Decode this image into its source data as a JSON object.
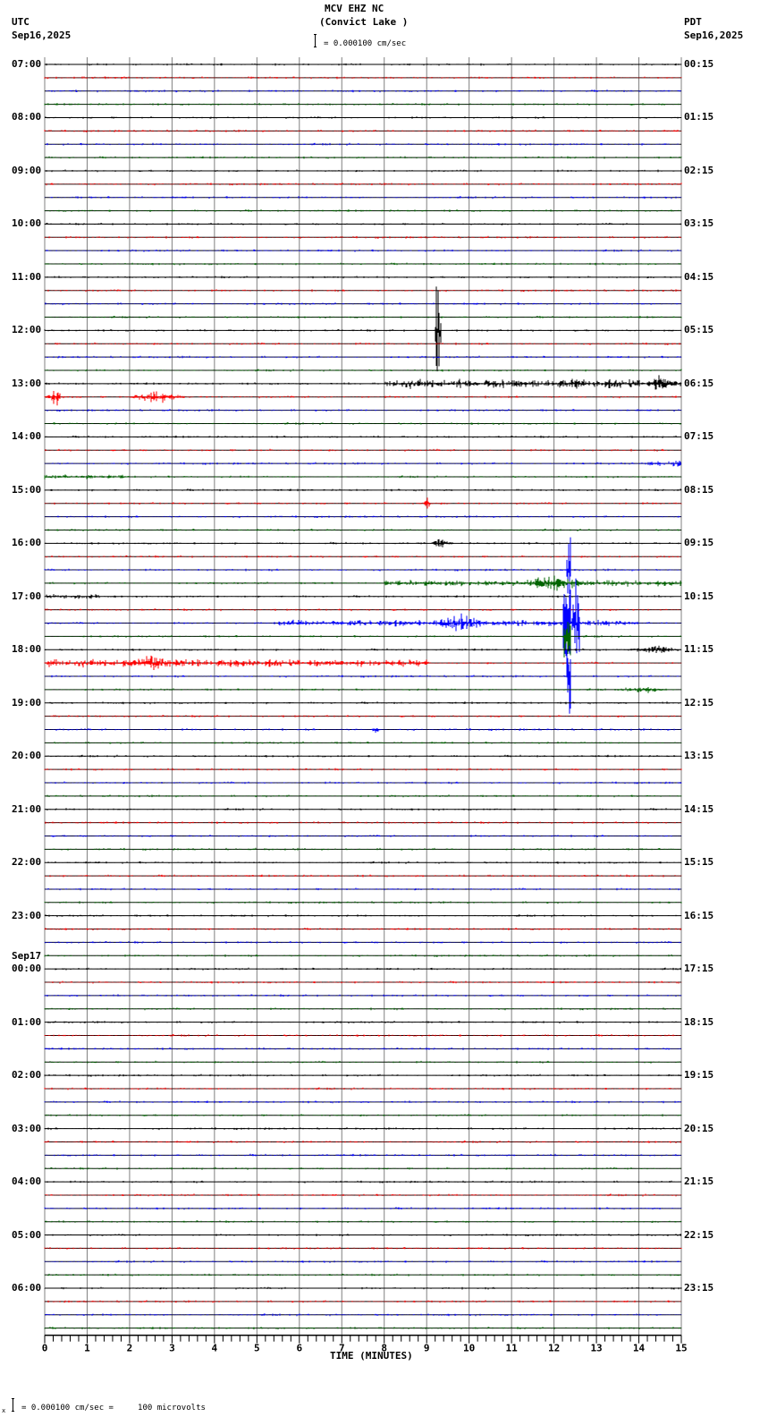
{
  "header": {
    "station": "MCV EHZ NC",
    "location": "(Convict Lake )",
    "left_tz": "UTC",
    "left_date": "Sep16,2025",
    "right_tz": "PDT",
    "right_date": "Sep16,2025",
    "scale_text": "= 0.000100 cm/sec"
  },
  "footer": {
    "scale_text": "= 0.000100 cm/sec =     100 microvolts",
    "prefix": "x"
  },
  "chart_data": {
    "type": "line",
    "title": "MCV EHZ NC (Convict Lake ) helicorder",
    "xlabel": "TIME (MINUTES)",
    "ylabel": "",
    "x_ticks": [
      "0",
      "1",
      "2",
      "3",
      "4",
      "5",
      "6",
      "7",
      "8",
      "9",
      "10",
      "11",
      "12",
      "13",
      "14",
      "15"
    ],
    "xlim": [
      0,
      15
    ],
    "grid": true,
    "trace_colors": [
      "#000000",
      "#ff0000",
      "#0000ff",
      "#006400"
    ],
    "rows_per_hour": 4,
    "left_labels": [
      "07:00",
      "08:00",
      "09:00",
      "10:00",
      "11:00",
      "12:00",
      "13:00",
      "14:00",
      "15:00",
      "16:00",
      "17:00",
      "18:00",
      "19:00",
      "20:00",
      "21:00",
      "22:00",
      "23:00",
      "00:00",
      "01:00",
      "02:00",
      "03:00",
      "04:00",
      "05:00",
      "06:00"
    ],
    "date_change_label": {
      "hour_index": 17,
      "text": "Sep17"
    },
    "right_labels": [
      "00:15",
      "01:15",
      "02:15",
      "03:15",
      "04:15",
      "05:15",
      "06:15",
      "07:15",
      "08:15",
      "09:15",
      "10:15",
      "11:15",
      "12:15",
      "13:15",
      "14:15",
      "15:15",
      "16:15",
      "17:15",
      "18:15",
      "19:15",
      "20:15",
      "21:15",
      "22:15",
      "23:15"
    ],
    "events": [
      {
        "row": 20,
        "start": 9.2,
        "end": 9.35,
        "amp": 60,
        "type": "spike"
      },
      {
        "row": 24,
        "start": 8.0,
        "end": 15.0,
        "amp": 6,
        "type": "noise"
      },
      {
        "row": 24,
        "start": 12.4,
        "end": 12.7,
        "amp": 8,
        "type": "burst"
      },
      {
        "row": 24,
        "start": 14.2,
        "end": 14.8,
        "amp": 14,
        "type": "burst"
      },
      {
        "row": 25,
        "start": 0.0,
        "end": 0.5,
        "amp": 12,
        "type": "burst"
      },
      {
        "row": 25,
        "start": 2.0,
        "end": 3.3,
        "amp": 7,
        "type": "burst"
      },
      {
        "row": 30,
        "start": 14.2,
        "end": 15.0,
        "amp": 4,
        "type": "noise"
      },
      {
        "row": 31,
        "start": 0.0,
        "end": 2.0,
        "amp": 3,
        "type": "noise"
      },
      {
        "row": 33,
        "start": 8.9,
        "end": 9.1,
        "amp": 10,
        "type": "burst"
      },
      {
        "row": 36,
        "start": 9.1,
        "end": 9.6,
        "amp": 6,
        "type": "burst"
      },
      {
        "row": 38,
        "start": 12.3,
        "end": 12.4,
        "amp": 45,
        "type": "spike"
      },
      {
        "row": 39,
        "start": 8.0,
        "end": 15.0,
        "amp": 4,
        "type": "noise"
      },
      {
        "row": 39,
        "start": 11.2,
        "end": 12.8,
        "amp": 12,
        "type": "burst"
      },
      {
        "row": 40,
        "start": 0.0,
        "end": 1.3,
        "amp": 3,
        "type": "noise"
      },
      {
        "row": 42,
        "start": 5.5,
        "end": 14.0,
        "amp": 4,
        "type": "noise"
      },
      {
        "row": 42,
        "start": 7.2,
        "end": 7.6,
        "amp": 7,
        "type": "burst"
      },
      {
        "row": 42,
        "start": 9.1,
        "end": 10.5,
        "amp": 12,
        "type": "burst"
      },
      {
        "row": 42,
        "start": 12.2,
        "end": 12.6,
        "amp": 55,
        "type": "spike"
      },
      {
        "row": 43,
        "start": 12.2,
        "end": 12.4,
        "amp": 30,
        "type": "spike"
      },
      {
        "row": 44,
        "start": 13.8,
        "end": 15.0,
        "amp": 5,
        "type": "burst"
      },
      {
        "row": 45,
        "start": 0.0,
        "end": 9.0,
        "amp": 5,
        "type": "noise"
      },
      {
        "row": 45,
        "start": 1.8,
        "end": 3.2,
        "amp": 10,
        "type": "burst"
      },
      {
        "row": 46,
        "start": 12.3,
        "end": 12.4,
        "amp": 50,
        "type": "spike"
      },
      {
        "row": 47,
        "start": 13.5,
        "end": 14.6,
        "amp": 5,
        "type": "burst"
      },
      {
        "row": 50,
        "start": 7.7,
        "end": 7.9,
        "amp": 5,
        "type": "burst"
      }
    ]
  }
}
